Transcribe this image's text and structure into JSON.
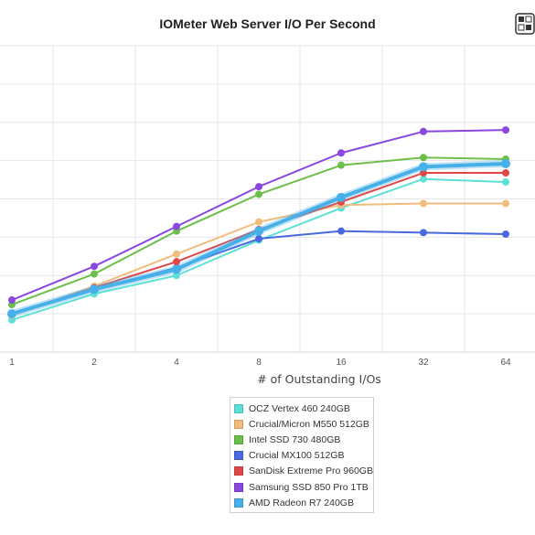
{
  "chart_data": {
    "type": "line",
    "title": "IOMeter Web Server I/O Per Second",
    "subtitle": "",
    "xlabel": "# of Outstanding I/Os",
    "ylabel": "",
    "x_scale": "log2",
    "categories": [
      "1",
      "2",
      "4",
      "8",
      "16",
      "32",
      "64"
    ],
    "x": [
      1,
      2,
      4,
      8,
      16,
      32,
      64
    ],
    "ylim": [
      0,
      100
    ],
    "grid": true,
    "legend_position": "bottom",
    "series": [
      {
        "name": "OCZ Vertex 460 240GB",
        "color": "#5de0d6",
        "values": [
          10.5,
          19,
          25,
          36.5,
          47,
          56.5,
          55.5
        ]
      },
      {
        "name": "Crucial/Micron M550 512GB",
        "color": "#f0bd7c",
        "values": [
          12,
          21.5,
          32,
          42.5,
          48,
          48.5,
          48.5
        ]
      },
      {
        "name": "Intel SSD 730 480GB",
        "color": "#6cc04a",
        "values": [
          15.5,
          25.5,
          39.5,
          51.5,
          61,
          63.5,
          63
        ]
      },
      {
        "name": "Crucial MX100 512GB",
        "color": "#4a68e0",
        "values": [
          12.5,
          20.5,
          27.5,
          37,
          39.5,
          39,
          38.5
        ]
      },
      {
        "name": "SanDisk Extreme Pro 960GB",
        "color": "#e04848",
        "values": [
          12.5,
          21,
          29.5,
          40,
          49,
          58.5,
          58.5
        ]
      },
      {
        "name": "Samsung SSD 850 Pro 1TB",
        "color": "#8a48e0",
        "values": [
          17,
          28,
          41,
          54,
          65,
          72,
          72.5
        ]
      },
      {
        "name": "AMD Radeon R7 240GB",
        "color": "#48b0e8",
        "values": [
          12.5,
          20.5,
          27,
          39.5,
          50.5,
          60.5,
          61.5
        ]
      }
    ]
  },
  "logo": {
    "icon": "site-logo-icon"
  }
}
